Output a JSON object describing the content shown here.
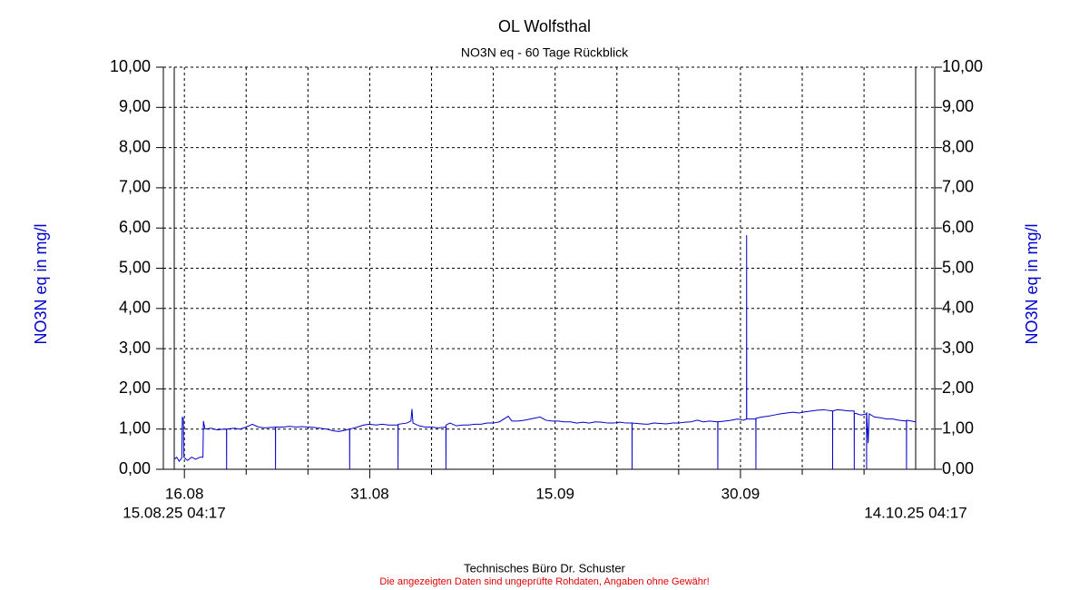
{
  "chart_data": {
    "type": "line",
    "title": "OL Wolfsthal",
    "subtitle": "NO3N eq - 60 Tage Rückblick",
    "ylabel": "NO3N eq in mg/l",
    "y2label": "NO3N eq in mg/l",
    "footer": "Technisches Büro Dr. Schuster",
    "disclaimer": "Die angezeigten Daten sind ungeprüfte Rohdaten, Angaben ohne Gewähr!",
    "color": "#0000cc",
    "grid": true,
    "xlim": [
      "15.08.25 04:17",
      "14.10.25 04:17"
    ],
    "xticks": [
      {
        "value": "16.08.25 00:00",
        "label": "16.08"
      },
      {
        "value": "31.08.25 00:00",
        "label": "31.08"
      },
      {
        "value": "15.09.25 00:00",
        "label": "15.09"
      },
      {
        "value": "30.09.25 00:00",
        "label": "30.09"
      }
    ],
    "ylim": [
      0,
      10
    ],
    "yticks": [
      {
        "value": 0,
        "label": "0,00"
      },
      {
        "value": 1,
        "label": "1,00"
      },
      {
        "value": 2,
        "label": "2,00"
      },
      {
        "value": 3,
        "label": "3,00"
      },
      {
        "value": 4,
        "label": "4,00"
      },
      {
        "value": 5,
        "label": "5,00"
      },
      {
        "value": 6,
        "label": "6,00"
      },
      {
        "value": 7,
        "label": "7,00"
      },
      {
        "value": 8,
        "label": "8,00"
      },
      {
        "value": 9,
        "label": "9,00"
      },
      {
        "value": 10,
        "label": "10,00"
      }
    ],
    "y2lim": [
      0,
      10
    ],
    "y2ticks": [
      {
        "value": 0,
        "label": "0,00"
      },
      {
        "value": 1,
        "label": "1,00"
      },
      {
        "value": 2,
        "label": "2,00"
      },
      {
        "value": 3,
        "label": "3,00"
      },
      {
        "value": 4,
        "label": "4,00"
      },
      {
        "value": 5,
        "label": "5,00"
      },
      {
        "value": 6,
        "label": "6,00"
      },
      {
        "value": 7,
        "label": "7,00"
      },
      {
        "value": 8,
        "label": "8,00"
      },
      {
        "value": 9,
        "label": "9,00"
      },
      {
        "value": 10,
        "label": "10,00"
      }
    ],
    "x": [
      "15.08.25 04:17",
      "15.08.25 09:00",
      "15.08.25 14:00",
      "15.08.25 19:00",
      "15.08.25 20:00",
      "15.08.25 22:00",
      "15.08.25 23:00",
      "16.08.25 06:00",
      "16.08.25 14:00",
      "16.08.25 22:00",
      "17.08.25 06:00",
      "17.08.25 12:00",
      "17.08.25 13:00",
      "17.08.25 16:00",
      "18.08.25 04:00",
      "18.08.25 16:00",
      "19.08.25 04:00",
      "19.08.25 09:50",
      "19.08.25 10:00",
      "19.08.25 10:10",
      "20.08.25 00:00",
      "20.08.25 12:00",
      "21.08.25 00:00",
      "21.08.25 12:00",
      "22.08.25 00:00",
      "22.08.25 12:00",
      "23.08.25 08:50",
      "23.08.25 09:00",
      "23.08.25 09:10",
      "24.08.25 00:00",
      "24.08.25 12:00",
      "25.08.25 00:00",
      "25.08.25 12:00",
      "26.08.25 00:00",
      "26.08.25 12:00",
      "27.08.25 00:00",
      "27.08.25 12:00",
      "28.08.25 00:00",
      "28.08.25 12:00",
      "29.08.25 00:00",
      "29.08.25 08:50",
      "29.08.25 09:00",
      "29.08.25 09:10",
      "30.08.25 00:00",
      "30.08.25 12:00",
      "31.08.25 00:00",
      "31.08.25 12:00",
      "01.09.25 00:00",
      "01.09.25 12:00",
      "02.09.25 06:50",
      "02.09.25 07:00",
      "02.09.25 07:10",
      "03.09.25 00:00",
      "03.09.25 08:00",
      "03.09.25 10:00",
      "03.09.25 12:00",
      "04.09.25 00:00",
      "04.09.25 12:00",
      "05.09.25 00:00",
      "05.09.25 12:00",
      "06.09.25 03:50",
      "06.09.25 04:00",
      "06.09.25 04:10",
      "06.09.25 12:00",
      "07.09.25 00:00",
      "07.09.25 12:00",
      "08.09.25 00:00",
      "08.09.25 12:00",
      "09.09.25 00:00",
      "09.09.25 12:00",
      "10.09.25 00:00",
      "10.09.25 12:00",
      "11.09.25 05:00",
      "11.09.25 12:00",
      "12.09.25 00:00",
      "12.09.25 12:00",
      "13.09.25 00:00",
      "13.09.25 19:00",
      "14.09.25 06:00",
      "14.09.25 18:00",
      "15.09.25 06:00",
      "15.09.25 18:00",
      "16.09.25 06:00",
      "16.09.25 18:00",
      "17.09.25 06:00",
      "17.09.25 18:00",
      "18.09.25 06:00",
      "18.09.25 18:00",
      "19.09.25 06:00",
      "19.09.25 18:00",
      "20.09.25 06:00",
      "20.09.25 18:00",
      "21.09.25 05:20",
      "21.09.25 05:30",
      "21.09.25 05:40",
      "22.09.25 00:00",
      "22.09.25 12:00",
      "23.09.25 00:00",
      "23.09.25 12:00",
      "24.09.25 00:00",
      "24.09.25 12:00",
      "25.09.25 00:00",
      "25.09.25 12:00",
      "26.09.25 00:00",
      "26.09.25 12:00",
      "27.09.25 00:00",
      "27.09.25 12:00",
      "28.09.25 03:50",
      "28.09.25 04:00",
      "28.09.25 04:10",
      "28.09.25 18:00",
      "29.09.25 06:00",
      "29.09.25 18:00",
      "30.09.25 06:00",
      "30.09.25 11:50",
      "30.09.25 12:00",
      "30.09.25 12:10",
      "30.09.25 22:00",
      "01.10.25 05:50",
      "01.10.25 06:00",
      "01.10.25 06:10",
      "01.10.25 18:00",
      "02.10.25 06:00",
      "02.10.25 18:00",
      "03.10.25 06:00",
      "03.10.25 18:00",
      "04.10.25 06:00",
      "04.10.25 18:00",
      "05.10.25 06:00",
      "05.10.25 18:00",
      "06.10.25 06:00",
      "06.10.25 18:00",
      "07.10.25 10:50",
      "07.10.25 11:00",
      "07.10.25 11:10",
      "07.10.25 20:00",
      "08.10.25 06:00",
      "08.10.25 18:00",
      "09.10.25 04:50",
      "09.10.25 05:00",
      "09.10.25 05:10",
      "09.10.25 18:00",
      "10.10.25 04:50",
      "10.10.25 05:00",
      "10.10.25 05:10",
      "10.10.25 08:00",
      "10.10.25 10:00",
      "10.10.25 20:00",
      "11.10.25 08:00",
      "11.10.25 20:00",
      "12.10.25 08:00",
      "12.10.25 20:00",
      "13.10.25 10:20",
      "13.10.25 10:30",
      "13.10.25 10:40",
      "13.10.25 20:00",
      "14.10.25 04:17"
    ],
    "values": [
      0.25,
      0.3,
      0.2,
      0.28,
      1.3,
      1.25,
      0.3,
      0.22,
      0.3,
      0.25,
      0.3,
      0.3,
      1.2,
      1.0,
      1.02,
      0.98,
      1.0,
      1.0,
      0,
      1.0,
      1.02,
      1.0,
      1.05,
      1.12,
      1.05,
      1.03,
      1.05,
      0,
      1.05,
      1.05,
      1.07,
      1.05,
      1.06,
      1.05,
      1.04,
      1.02,
      1.0,
      0.96,
      0.94,
      0.97,
      1.0,
      0,
      1.0,
      1.05,
      1.1,
      1.12,
      1.1,
      1.12,
      1.1,
      1.1,
      0,
      1.12,
      1.15,
      1.2,
      1.5,
      1.15,
      1.08,
      1.05,
      1.05,
      1.03,
      1.05,
      0,
      1.1,
      1.15,
      1.08,
      1.1,
      1.1,
      1.12,
      1.12,
      1.15,
      1.15,
      1.18,
      1.32,
      1.2,
      1.2,
      1.22,
      1.25,
      1.3,
      1.22,
      1.2,
      1.2,
      1.18,
      1.18,
      1.15,
      1.17,
      1.15,
      1.18,
      1.17,
      1.15,
      1.15,
      1.17,
      1.15,
      1.15,
      0,
      1.15,
      1.13,
      1.12,
      1.15,
      1.14,
      1.13,
      1.15,
      1.15,
      1.17,
      1.18,
      1.22,
      1.18,
      1.2,
      1.18,
      0,
      1.18,
      1.2,
      1.22,
      1.25,
      1.22,
      1.25,
      5.82,
      1.25,
      1.25,
      1.25,
      0,
      1.27,
      1.3,
      1.32,
      1.35,
      1.38,
      1.4,
      1.42,
      1.4,
      1.43,
      1.45,
      1.47,
      1.48,
      1.45,
      0,
      1.45,
      1.48,
      1.47,
      1.45,
      1.45,
      0,
      1.4,
      1.35,
      1.38,
      0,
      1.42,
      0.65,
      1.38,
      1.3,
      1.28,
      1.25,
      1.25,
      1.22,
      1.2,
      0,
      1.22,
      1.2,
      1.18
    ]
  }
}
